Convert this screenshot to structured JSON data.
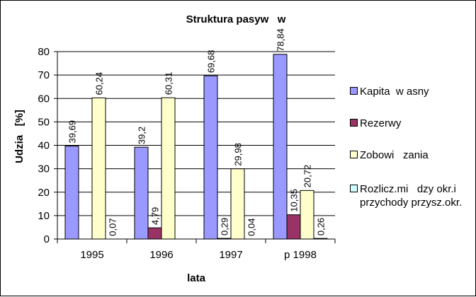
{
  "chart_data": {
    "type": "bar",
    "title": "Struktura pasyw   w",
    "xlabel": "lata",
    "ylabel": "Udzia   [%]",
    "ylim": [
      0,
      80
    ],
    "yticks": [
      "0",
      "10",
      "20",
      "30",
      "40",
      "50",
      "60",
      "70",
      "80"
    ],
    "categories": [
      "1995",
      "1996",
      "1997",
      "p     1998"
    ],
    "grid": true,
    "legend_position": "right",
    "series": [
      {
        "name": "Kapita  w asny",
        "color": "#9999ff",
        "values": [
          39.69,
          39.2,
          69.68,
          78.84
        ],
        "labels": [
          "39,69",
          "39,2",
          "69,68",
          "78,84"
        ]
      },
      {
        "name": "Rezerwy",
        "color": "#993366",
        "values": [
          0,
          4.79,
          0.29,
          10.35
        ],
        "labels": [
          "",
          "4,79",
          "0,29",
          "10,35"
        ]
      },
      {
        "name": "Zobowi   zania",
        "color": "#ffffcc",
        "values": [
          60.24,
          60.31,
          29.98,
          20.72
        ],
        "labels": [
          "60,24",
          "60,31",
          "29,98",
          "20,72"
        ]
      },
      {
        "name": "Rozlicz.mi   dzy okr.i\nprzychody przysz.okr.",
        "color": "#ccffff",
        "values": [
          0.07,
          0,
          0.04,
          0.26
        ],
        "labels": [
          "0,07",
          "",
          "0,04",
          "0,26"
        ]
      }
    ]
  }
}
